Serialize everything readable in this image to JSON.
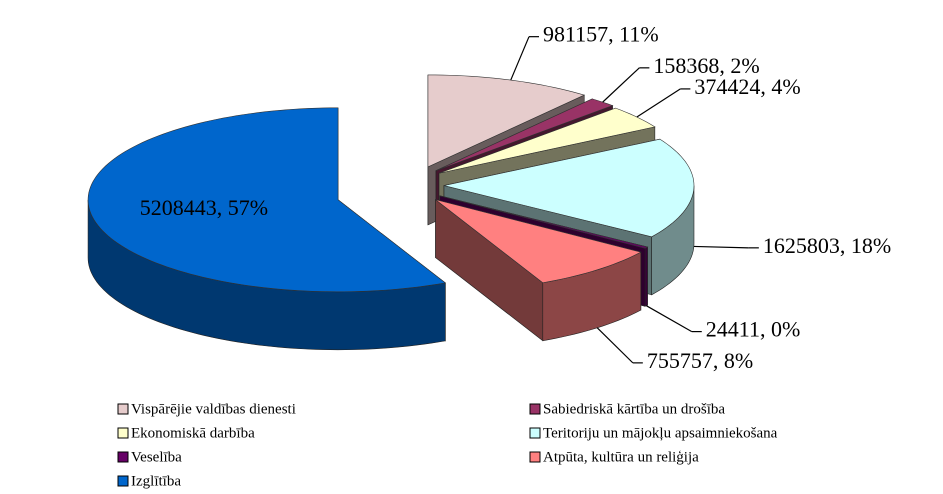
{
  "chart_data": {
    "type": "pie",
    "categories": [
      "Vispārējie valdības dienesti",
      "Sabiedriskā kārtība un drošība",
      "Ekonomiskā darbība",
      "Teritoriju un mājokļu apsaimniekošana",
      "Veselība",
      "Atpūta, kultūra un reliģija",
      "Izglītība"
    ],
    "values": [
      981157,
      158368,
      374424,
      1625803,
      24411,
      755757,
      5208443
    ],
    "value_labels": [
      "981157, 11%",
      "158368, 2%",
      "374424, 4%",
      "1625803, 18%",
      "24411, 0%",
      "755757, 8%",
      "5208443, 57%"
    ],
    "colors": [
      "#e6cccc",
      "#993366",
      "#ffffcc",
      "#ccffff",
      "#660066",
      "#ff8080",
      "#0066cc"
    ],
    "legend": "bottom"
  }
}
